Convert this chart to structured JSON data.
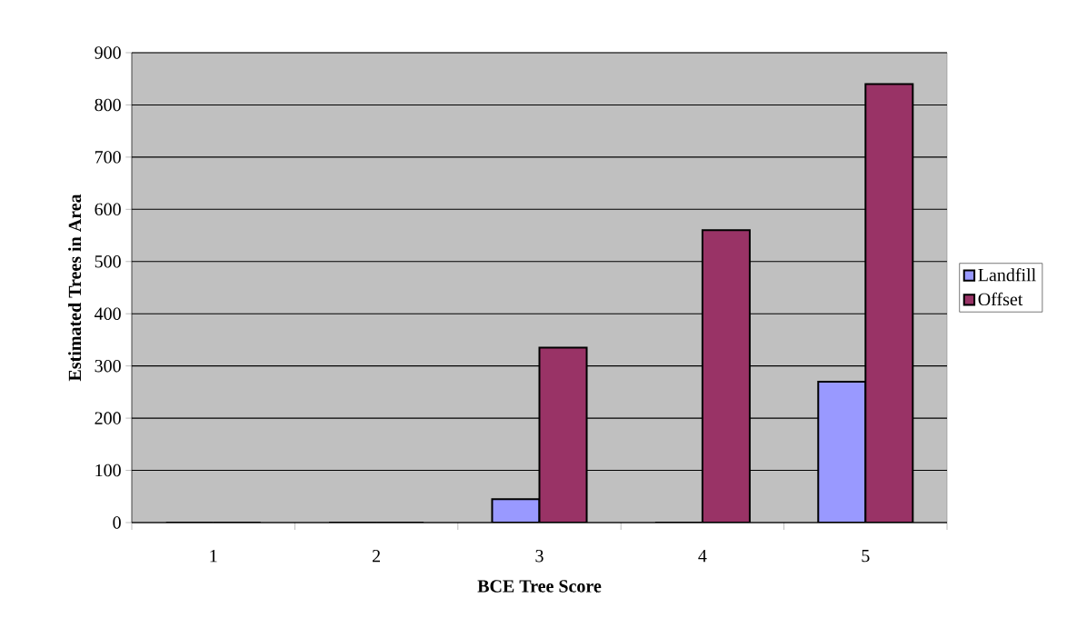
{
  "chart_data": {
    "type": "bar",
    "xlabel": "BCE Tree Score",
    "ylabel": "Estimated Trees in Area",
    "categories": [
      "1",
      "2",
      "3",
      "4",
      "5"
    ],
    "series": [
      {
        "name": "Landfill",
        "color": "#9999ff",
        "values": [
          0,
          0,
          45,
          0,
          270
        ]
      },
      {
        "name": "Offset",
        "color": "#993366",
        "values": [
          0,
          0,
          335,
          560,
          840
        ]
      }
    ],
    "ylim": [
      0,
      900
    ],
    "yticks": [
      0,
      100,
      200,
      300,
      400,
      500,
      600,
      700,
      800,
      900
    ],
    "grid": "y",
    "legend": "right"
  }
}
